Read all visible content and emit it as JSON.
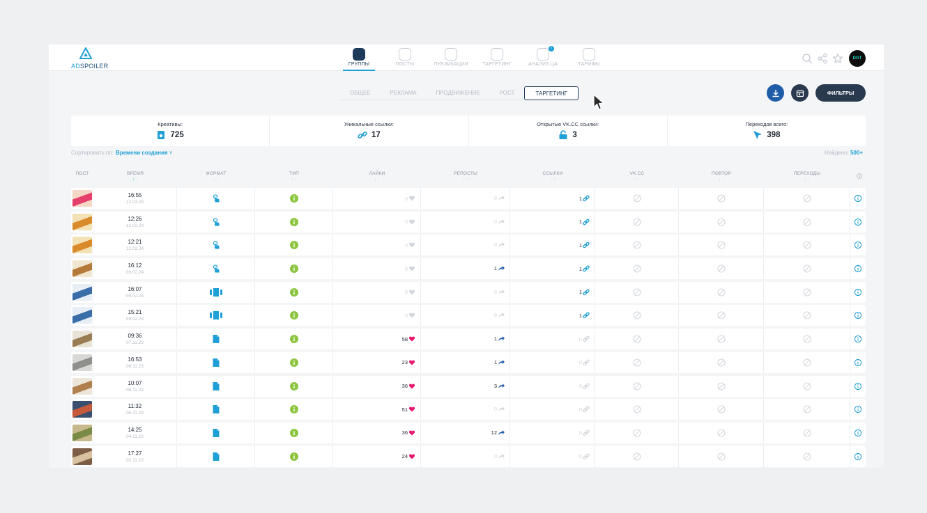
{
  "logo": {
    "part1": "AD",
    "part2": "SPOILER"
  },
  "nav": [
    {
      "label": "ГРУППЫ",
      "icon": "groups-icon",
      "active": true
    },
    {
      "label": "ПОСТЫ",
      "icon": "posts-icon"
    },
    {
      "label": "ПУБЛИКАЦИИ",
      "icon": "publications-icon"
    },
    {
      "label": "ТАРГЕТИНГ",
      "icon": "targeting-icon"
    },
    {
      "label": "АНАЛИЗ ЦА",
      "icon": "audience-analysis-icon",
      "badge": "!"
    },
    {
      "label": "ТАРИФЫ",
      "icon": "tariffs-icon"
    }
  ],
  "avatar_text": "DGT",
  "subtabs": [
    "ОБЩЕЕ",
    "РЕКЛАМА",
    "ПРОДВИЖЕНИЕ",
    "РОСТ",
    "ТАРГЕТИНГ"
  ],
  "active_subtab": "ТАРГЕТИНГ",
  "filters_label": "ФИЛЬТРЫ",
  "stats": [
    {
      "label": "Креативы:",
      "value": "725",
      "icon": "creative-icon"
    },
    {
      "label": "Уникальные ссылки:",
      "value": "17",
      "icon": "link-icon"
    },
    {
      "label": "Открытые VK.CC ссылки:",
      "value": "3",
      "icon": "unlock-icon"
    },
    {
      "label": "Переходов всего:",
      "value": "398",
      "icon": "cursor-icon"
    }
  ],
  "sort": {
    "label": "Сортировать по:",
    "value": "Времени создания"
  },
  "found": {
    "label": "Найдено:",
    "value": "500+"
  },
  "columns": [
    "ПОСТ",
    "ВРЕМЯ",
    "ФОРМАТ",
    "ТИП",
    "ЛАЙКИ",
    "РЕПОСТЫ",
    "ССЫЛКИ",
    "VK.CC",
    "ПОВТОР",
    "ПЕРЕХОДЫ"
  ],
  "colors": {
    "accent": "#1e9fd6",
    "dark": "#1f3b5b",
    "green": "#8cc63f",
    "heart": "#e4196e"
  },
  "rows": [
    {
      "time": "16:55",
      "date": "12.03.24",
      "format": "click",
      "likes": "0",
      "reposts": "0",
      "links": "1",
      "thumb": [
        "#f4d7c5",
        "#e4406a"
      ]
    },
    {
      "time": "12:26",
      "date": "12.02.24",
      "format": "click",
      "likes": "0",
      "reposts": "0",
      "links": "1",
      "thumb": [
        "#f3e2b6",
        "#d98b2b"
      ]
    },
    {
      "time": "12:21",
      "date": "12.02.24",
      "format": "click",
      "likes": "0",
      "reposts": "0",
      "links": "1",
      "thumb": [
        "#f3e2b6",
        "#d98b2b"
      ]
    },
    {
      "time": "16:12",
      "date": "09.02.24",
      "format": "click",
      "likes": "0",
      "reposts": "1",
      "links": "1",
      "thumb": [
        "#f1e6cf",
        "#b57a3a"
      ]
    },
    {
      "time": "16:07",
      "date": "09.02.24",
      "format": "carousel",
      "likes": "0",
      "reposts": "0",
      "links": "1",
      "thumb": [
        "#e8eef6",
        "#3a6ea8"
      ]
    },
    {
      "time": "15:21",
      "date": "09.02.24",
      "format": "carousel",
      "likes": "0",
      "reposts": "0",
      "links": "1",
      "thumb": [
        "#e8eef6",
        "#3a6ea8"
      ]
    },
    {
      "time": "09:36",
      "date": "07.11.23",
      "format": "doc",
      "likes": "58",
      "reposts": "1",
      "links": "0",
      "thumb": [
        "#e9e3d6",
        "#9a7c53"
      ]
    },
    {
      "time": "16:53",
      "date": "06.11.23",
      "format": "doc",
      "likes": "23",
      "reposts": "1",
      "links": "0",
      "thumb": [
        "#d8d8d6",
        "#8f8f8c"
      ]
    },
    {
      "time": "10:07",
      "date": "06.11.23",
      "format": "doc",
      "likes": "36",
      "reposts": "3",
      "links": "0",
      "thumb": [
        "#ede6d8",
        "#b07f4e"
      ]
    },
    {
      "time": "11:32",
      "date": "05.11.23",
      "format": "doc",
      "likes": "51",
      "reposts": "0",
      "links": "0",
      "thumb": [
        "#3b4f6e",
        "#c75a3a"
      ]
    },
    {
      "time": "14:25",
      "date": "04.11.23",
      "format": "doc",
      "likes": "36",
      "reposts": "12",
      "links": "0",
      "thumb": [
        "#c7b98c",
        "#7a8b45"
      ]
    },
    {
      "time": "17:27",
      "date": "02.11.23",
      "format": "doc",
      "likes": "24",
      "reposts": "0",
      "links": "0",
      "thumb": [
        "#7e5e46",
        "#d9c2a0"
      ]
    }
  ]
}
